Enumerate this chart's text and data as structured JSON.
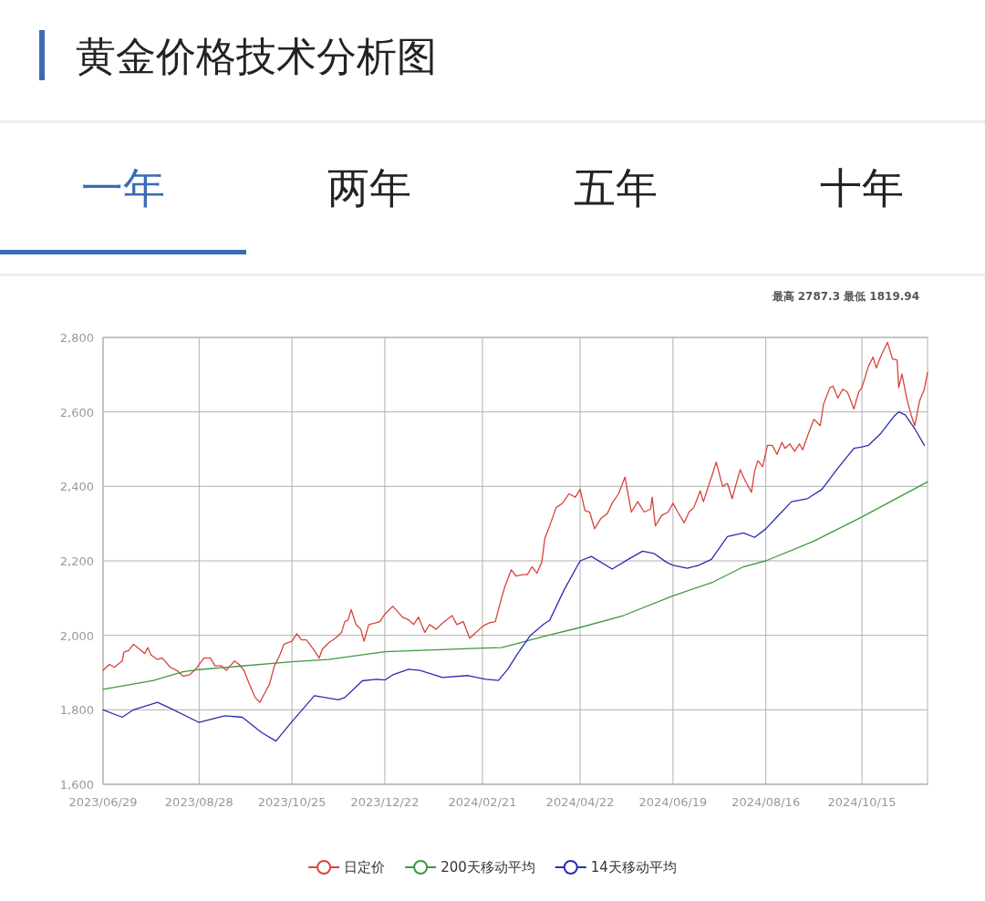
{
  "chart_data": {
    "type": "line",
    "title": "黄金价格技术分析图",
    "annotations": [
      "最高 2787.3 最低 1819.94",
      "一年",
      "两年",
      "五年",
      "十年"
    ],
    "xlim": [
      "2023-06-29",
      "2024-11-25"
    ],
    "ylim": [
      1600,
      2800
    ],
    "xticks": [
      {
        "value": "2023-06-29",
        "label": "2023/06/29"
      },
      {
        "value": "2023-08-28",
        "label": "2023/08/28"
      },
      {
        "value": "2023-10-25",
        "label": "2023/10/25"
      },
      {
        "value": "2023-12-22",
        "label": "2023/12/22"
      },
      {
        "value": "2024-02-21",
        "label": "2024/02/21"
      },
      {
        "value": "2024-04-22",
        "label": "2024/04/22"
      },
      {
        "value": "2024-06-19",
        "label": "2024/06/19"
      },
      {
        "value": "2024-08-16",
        "label": "2024/08/16"
      },
      {
        "value": "2024-10-15",
        "label": "2024/10/15"
      }
    ],
    "yticks": [
      {
        "value": 1600,
        "label": "1,600"
      },
      {
        "value": 1800,
        "label": "1,800"
      },
      {
        "value": 2000,
        "label": "2,000"
      },
      {
        "value": 2200,
        "label": "2,200"
      },
      {
        "value": 2400,
        "label": "2,400"
      },
      {
        "value": 2600,
        "label": "2,600"
      },
      {
        "value": 2800,
        "label": "2,800"
      }
    ],
    "grid": true,
    "legend": "bottom",
    "series": [
      {
        "name": "日定价",
        "color": "#d9433a",
        "x": [
          "2023-06-29",
          "2023-07-03",
          "2023-07-06",
          "2023-07-11",
          "2023-07-12",
          "2023-07-15",
          "2023-07-18",
          "2023-07-23",
          "2023-07-25",
          "2023-07-27",
          "2023-07-29",
          "2023-08-02",
          "2023-08-05",
          "2023-08-10",
          "2023-08-14",
          "2023-08-18",
          "2023-08-22",
          "2023-08-26",
          "2023-08-28",
          "2023-08-31",
          "2023-09-04",
          "2023-09-07",
          "2023-09-11",
          "2023-09-14",
          "2023-09-19",
          "2023-09-22",
          "2023-09-25",
          "2023-09-28",
          "2023-10-02",
          "2023-10-05",
          "2023-10-07",
          "2023-10-11",
          "2023-10-14",
          "2023-10-17",
          "2023-10-20",
          "2023-10-25",
          "2023-10-28",
          "2023-10-31",
          "2023-11-03",
          "2023-11-08",
          "2023-11-11",
          "2023-11-13",
          "2023-11-17",
          "2023-11-21",
          "2023-11-25",
          "2023-11-27",
          "2023-11-29",
          "2023-12-01",
          "2023-12-04",
          "2023-12-07",
          "2023-12-09",
          "2023-12-12",
          "2023-12-16",
          "2023-12-19",
          "2023-12-22",
          "2023-12-27",
          "2024-01-02",
          "2024-01-06",
          "2024-01-09",
          "2024-01-12",
          "2024-01-16",
          "2024-01-19",
          "2024-01-23",
          "2024-01-27",
          "2024-02-02",
          "2024-02-05",
          "2024-02-09",
          "2024-02-13",
          "2024-02-16",
          "2024-02-21",
          "2024-02-25",
          "2024-02-29",
          "2024-03-03",
          "2024-03-06",
          "2024-03-10",
          "2024-03-13",
          "2024-03-17",
          "2024-03-20",
          "2024-03-23",
          "2024-03-26",
          "2024-03-29",
          "2024-03-31",
          "2024-04-03",
          "2024-04-07",
          "2024-04-11",
          "2024-04-15",
          "2024-04-19",
          "2024-04-22",
          "2024-04-25",
          "2024-04-28",
          "2024-05-01",
          "2024-05-05",
          "2024-05-09",
          "2024-05-12",
          "2024-05-16",
          "2024-05-20",
          "2024-05-24",
          "2024-05-28",
          "2024-06-01",
          "2024-06-05",
          "2024-06-06",
          "2024-06-08",
          "2024-06-12",
          "2024-06-16",
          "2024-06-19",
          "2024-06-22",
          "2024-06-26",
          "2024-06-29",
          "2024-07-02",
          "2024-07-06",
          "2024-07-08",
          "2024-07-12",
          "2024-07-13",
          "2024-07-16",
          "2024-07-20",
          "2024-07-23",
          "2024-07-26",
          "2024-07-28",
          "2024-07-31",
          "2024-08-03",
          "2024-08-07",
          "2024-08-09",
          "2024-08-11",
          "2024-08-14",
          "2024-08-17",
          "2024-08-20",
          "2024-08-23",
          "2024-08-26",
          "2024-08-28",
          "2024-08-31",
          "2024-09-03",
          "2024-09-06",
          "2024-09-08",
          "2024-09-11",
          "2024-09-15",
          "2024-09-19",
          "2024-09-21",
          "2024-09-25",
          "2024-09-27",
          "2024-09-30",
          "2024-10-03",
          "2024-10-06",
          "2024-10-10",
          "2024-10-13",
          "2024-10-15",
          "2024-10-19",
          "2024-10-22",
          "2024-10-24",
          "2024-10-27",
          "2024-10-31",
          "2024-11-03",
          "2024-11-06",
          "2024-11-07",
          "2024-11-09",
          "2024-11-12",
          "2024-11-15",
          "2024-11-17",
          "2024-11-20",
          "2024-11-23",
          "2024-11-25"
        ],
        "values": [
          1906,
          1922,
          1914,
          1931,
          1955,
          1959,
          1976,
          1959,
          1951,
          1967,
          1947,
          1935,
          1939,
          1914,
          1906,
          1890,
          1894,
          1910,
          1922,
          1939,
          1939,
          1918,
          1918,
          1906,
          1931,
          1922,
          1906,
          1873,
          1833,
          1820,
          1837,
          1869,
          1918,
          1943,
          1976,
          1984,
          2004,
          1988,
          1988,
          1959,
          1939,
          1963,
          1980,
          1992,
          2008,
          2037,
          2041,
          2069,
          2029,
          2016,
          1984,
          2029,
          2033,
          2037,
          2057,
          2078,
          2049,
          2041,
          2029,
          2049,
          2008,
          2029,
          2016,
          2033,
          2053,
          2029,
          2037,
          1992,
          2004,
          2024,
          2033,
          2037,
          2086,
          2131,
          2176,
          2159,
          2163,
          2163,
          2184,
          2167,
          2196,
          2261,
          2294,
          2343,
          2355,
          2380,
          2371,
          2392,
          2335,
          2331,
          2286,
          2314,
          2327,
          2355,
          2380,
          2425,
          2331,
          2359,
          2331,
          2339,
          2371,
          2294,
          2322,
          2331,
          2355,
          2331,
          2302,
          2331,
          2343,
          2388,
          2359,
          2412,
          2424,
          2465,
          2400,
          2408,
          2367,
          2400,
          2445,
          2416,
          2384,
          2441,
          2469,
          2453,
          2510,
          2510,
          2486,
          2518,
          2502,
          2514,
          2494,
          2514,
          2498,
          2535,
          2580,
          2563,
          2620,
          2665,
          2669,
          2637,
          2661,
          2653,
          2608,
          2653,
          2665,
          2722,
          2747,
          2718,
          2751,
          2787,
          2743,
          2739,
          2665,
          2702,
          2637,
          2588,
          2563,
          2629,
          2661,
          2706
        ]
      },
      {
        "name": "200天移动平均",
        "color": "#3d9a3d",
        "x": [
          "2023-06-29",
          "2023-07-30",
          "2023-08-18",
          "2023-08-28",
          "2023-10-25",
          "2023-11-17",
          "2023-12-22",
          "2024-02-23",
          "2024-03-04",
          "2024-04-02",
          "2024-04-21",
          "2024-05-19",
          "2024-06-19",
          "2024-07-14",
          "2024-08-02",
          "2024-08-16",
          "2024-09-15",
          "2024-10-15",
          "2024-11-25"
        ],
        "values": [
          1855,
          1878,
          1902,
          1908,
          1929,
          1935,
          1956,
          1966,
          1967,
          2000,
          2020,
          2053,
          2106,
          2143,
          2184,
          2200,
          2253,
          2318,
          2412
        ]
      },
      {
        "name": "14天移动平均",
        "color": "#2a2db0",
        "x": [
          "2023-06-29",
          "2023-07-11",
          "2023-07-18",
          "2023-08-02",
          "2023-08-10",
          "2023-08-28",
          "2023-09-13",
          "2023-09-24",
          "2023-10-06",
          "2023-10-15",
          "2023-10-24",
          "2023-11-08",
          "2023-11-23",
          "2023-11-27",
          "2023-12-08",
          "2023-12-17",
          "2023-12-22",
          "2023-12-27",
          "2024-01-06",
          "2024-01-13",
          "2024-01-27",
          "2024-02-12",
          "2024-02-23",
          "2024-03-02",
          "2024-03-08",
          "2024-03-14",
          "2024-03-22",
          "2024-03-30",
          "2024-04-03",
          "2024-04-12",
          "2024-04-22",
          "2024-04-29",
          "2024-05-12",
          "2024-05-22",
          "2024-05-31",
          "2024-06-07",
          "2024-06-15",
          "2024-06-19",
          "2024-06-28",
          "2024-07-05",
          "2024-07-13",
          "2024-07-23",
          "2024-08-02",
          "2024-08-09",
          "2024-08-16",
          "2024-08-23",
          "2024-09-01",
          "2024-09-11",
          "2024-09-20",
          "2024-09-30",
          "2024-10-10",
          "2024-10-15",
          "2024-10-19",
          "2024-10-27",
          "2024-11-04",
          "2024-11-07",
          "2024-11-11",
          "2024-11-17",
          "2024-11-23"
        ],
        "values": [
          1800,
          1780,
          1800,
          1820,
          1804,
          1766,
          1784,
          1780,
          1739,
          1716,
          1763,
          1838,
          1827,
          1833,
          1878,
          1882,
          1880,
          1894,
          1909,
          1906,
          1887,
          1892,
          1882,
          1879,
          1910,
          1951,
          2000,
          2029,
          2041,
          2122,
          2200,
          2212,
          2178,
          2204,
          2226,
          2220,
          2196,
          2188,
          2180,
          2188,
          2204,
          2265,
          2275,
          2263,
          2286,
          2318,
          2359,
          2367,
          2392,
          2449,
          2502,
          2506,
          2510,
          2543,
          2588,
          2600,
          2592,
          2555,
          2510
        ]
      }
    ]
  }
}
